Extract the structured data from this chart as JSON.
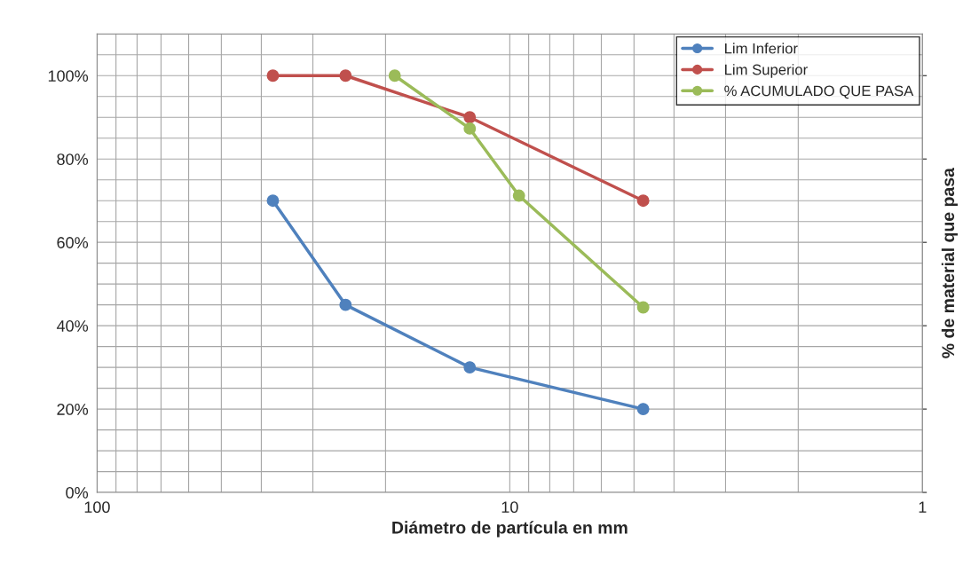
{
  "chart_data": {
    "type": "line",
    "xlabel": "Diámetro de partícula en mm",
    "ylabel": "% de material que pasa",
    "log": "x",
    "xlim": [
      100,
      1
    ],
    "xticks": [
      100,
      10,
      1
    ],
    "ylim": [
      0,
      110
    ],
    "yticks": [
      {
        "value": 0,
        "label": "0%"
      },
      {
        "value": 20,
        "label": "20%"
      },
      {
        "value": 40,
        "label": "40%"
      },
      {
        "value": 60,
        "label": "60%"
      },
      {
        "value": 80,
        "label": "80%"
      },
      {
        "value": 100,
        "label": "100%"
      }
    ],
    "grid": true,
    "legend": "top right",
    "marker": "circle",
    "line_style": "solid",
    "series": [
      {
        "name": "Lim Inferior",
        "color": "#4f81bd",
        "x": [
          37.5,
          25,
          12.5,
          4.75
        ],
        "values": [
          70,
          45,
          30,
          20
        ]
      },
      {
        "name": "Lim Superior",
        "color": "#c0504d",
        "x": [
          37.5,
          25,
          12.5,
          4.75
        ],
        "values": [
          100,
          100,
          90,
          70
        ]
      },
      {
        "name": "% ACUMULADO QUE PASA",
        "color": "#9bbb59",
        "x": [
          19,
          12.5,
          9.5,
          4.75
        ],
        "values": [
          100,
          87.3,
          71.2,
          44.4
        ]
      }
    ]
  }
}
